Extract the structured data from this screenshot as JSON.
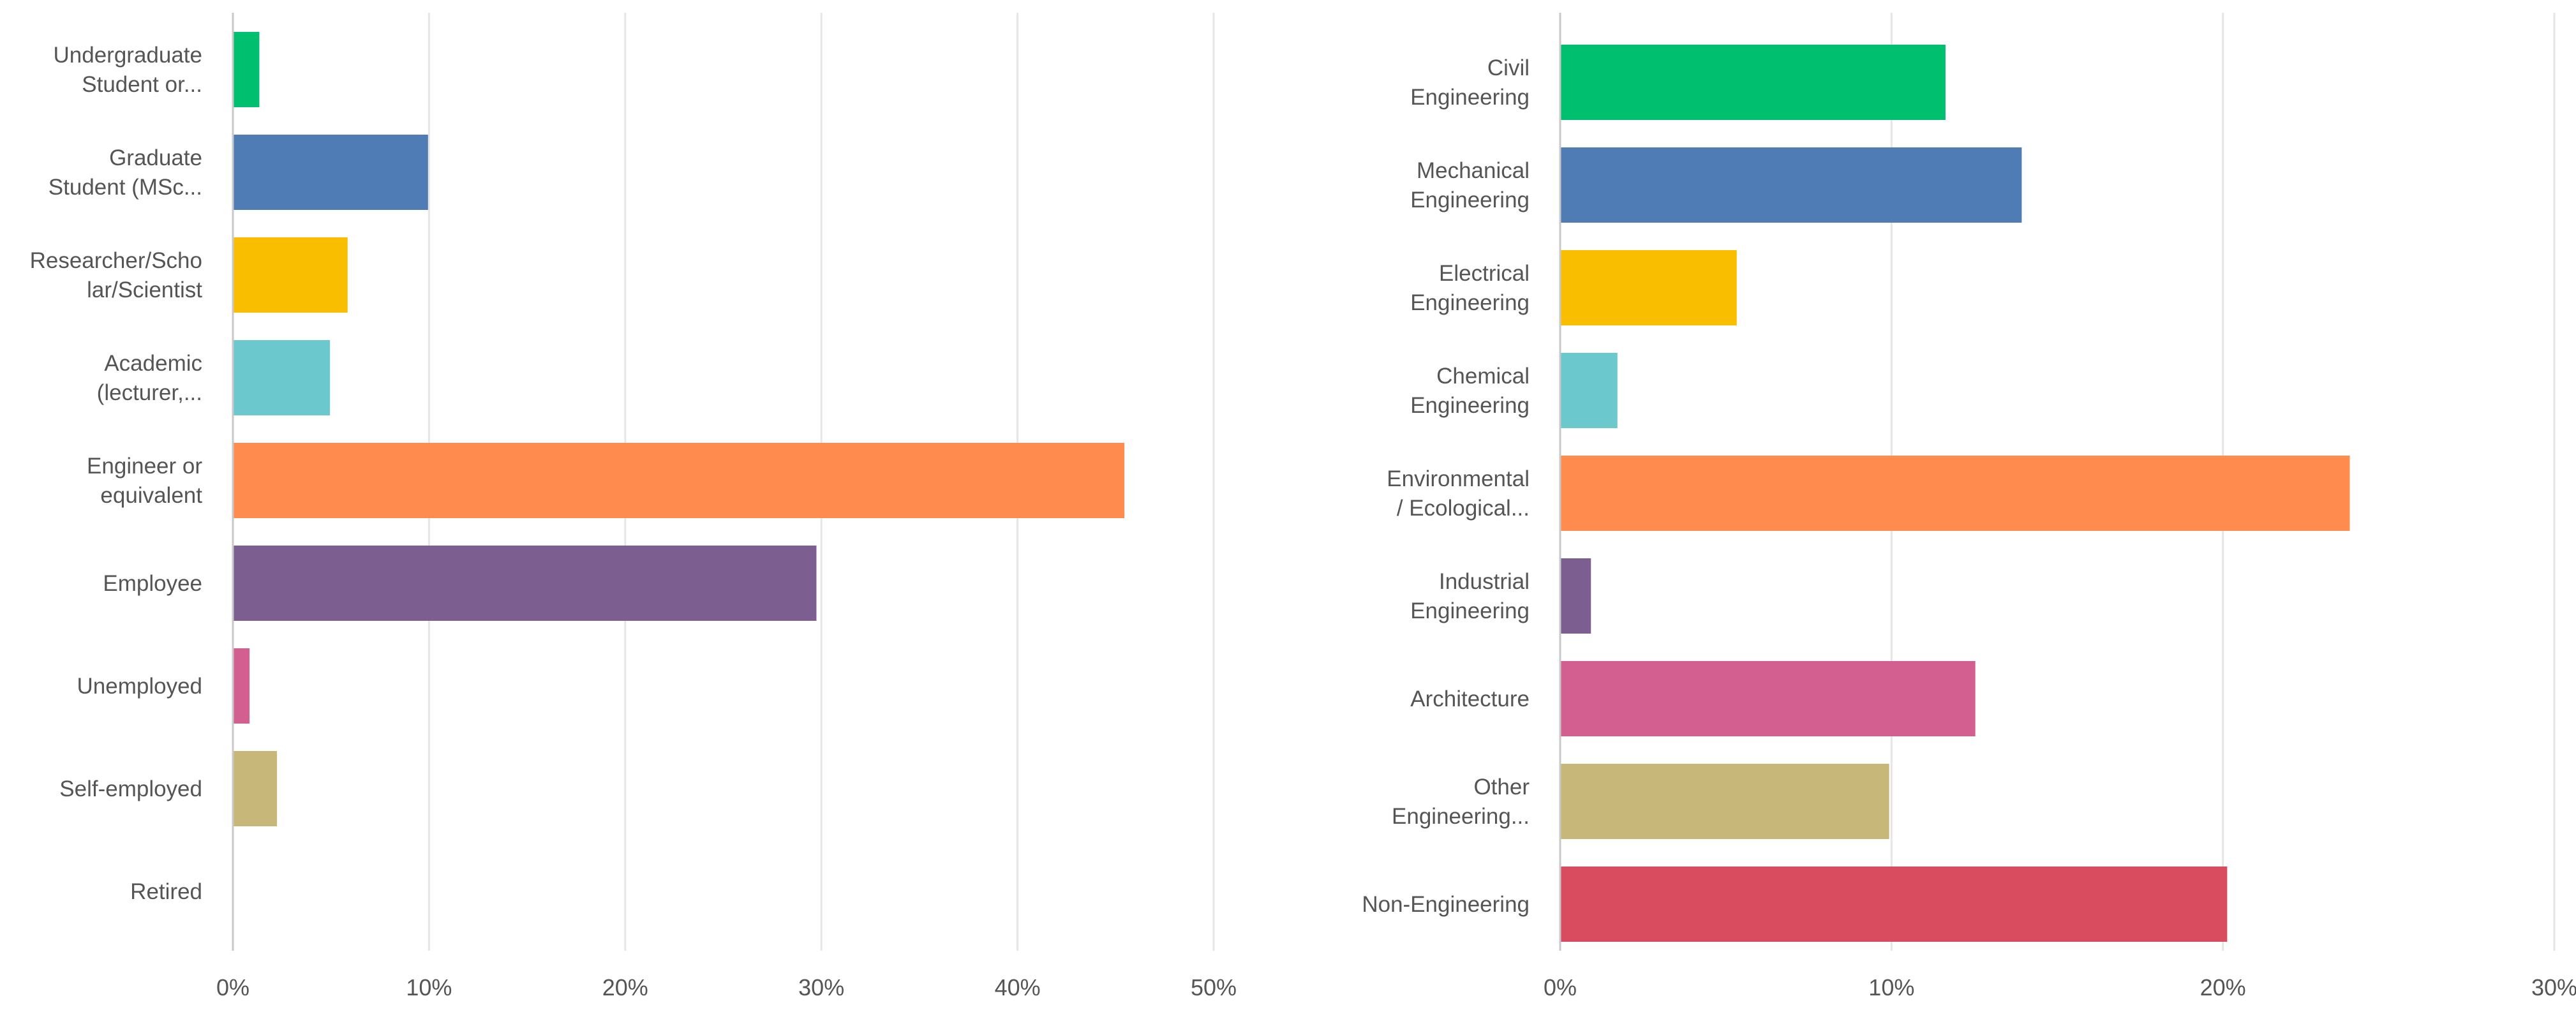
{
  "chart_data": [
    {
      "type": "bar",
      "orientation": "horizontal",
      "title": "",
      "xlabel": "",
      "ylabel": "",
      "xlim": [
        0,
        50
      ],
      "ticks": [
        0,
        10,
        20,
        30,
        40,
        50
      ],
      "tick_labels": [
        "0%",
        "10%",
        "20%",
        "30%",
        "40%",
        "50%"
      ],
      "grid": true,
      "categories": [
        [
          "Undergraduate",
          "Student or..."
        ],
        [
          "Graduate",
          "Student (MSc..."
        ],
        [
          "Researcher/Scho",
          "lar/Scientist"
        ],
        [
          "Academic",
          "(lecturer,..."
        ],
        [
          "Engineer or",
          "equivalent"
        ],
        [
          "Employee"
        ],
        [
          "Unemployed"
        ],
        [
          "Self-employed"
        ],
        [
          "Retired"
        ]
      ],
      "values": [
        1.3,
        9.9,
        5.8,
        4.9,
        45.4,
        29.7,
        0.8,
        2.2,
        0.0
      ],
      "colors": [
        "#00bf6f",
        "#507cb6",
        "#f9be00",
        "#6bc8cd",
        "#ff8b4f",
        "#7d5e90",
        "#d25f90",
        "#c7b879",
        "#a0a0a0"
      ]
    },
    {
      "type": "bar",
      "orientation": "horizontal",
      "title": "",
      "xlabel": "",
      "ylabel": "",
      "xlim": [
        0,
        30
      ],
      "ticks": [
        0,
        10,
        20,
        30
      ],
      "tick_labels": [
        "0%",
        "10%",
        "20%",
        "30%"
      ],
      "grid": true,
      "categories": [
        [
          "Civil",
          "Engineering"
        ],
        [
          "Mechanical",
          "Engineering"
        ],
        [
          "Electrical",
          "Engineering"
        ],
        [
          "Chemical",
          "Engineering"
        ],
        [
          "Environmental",
          "/ Ecological..."
        ],
        [
          "Industrial",
          "Engineering"
        ],
        [
          "Architecture"
        ],
        [
          "Other",
          "Engineering..."
        ],
        [
          "Non-Engineering"
        ]
      ],
      "values": [
        11.6,
        13.9,
        5.3,
        1.7,
        23.8,
        0.9,
        12.5,
        9.9,
        20.1
      ],
      "colors": [
        "#00bf6f",
        "#507cb6",
        "#f9be00",
        "#6bc8cd",
        "#ff8b4f",
        "#7d5e90",
        "#d25f90",
        "#c7b879",
        "#d94b5e"
      ]
    }
  ]
}
